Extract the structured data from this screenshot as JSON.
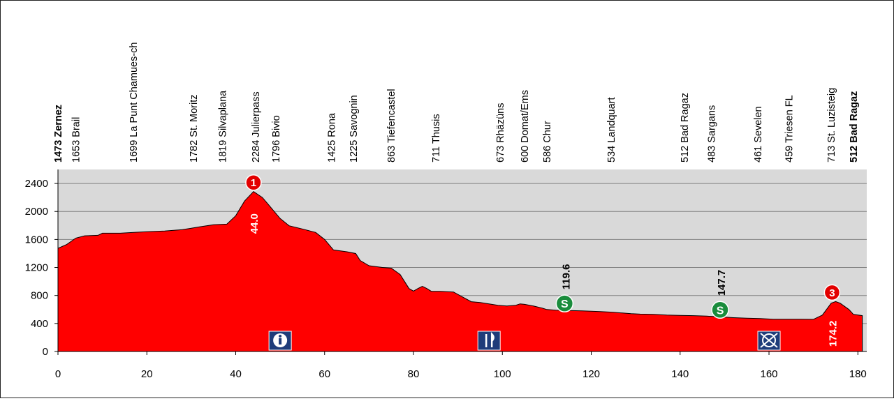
{
  "chart_data": {
    "type": "area",
    "title": "",
    "xlabel": "",
    "ylabel": "",
    "xlim": [
      0,
      182
    ],
    "ylim": [
      0,
      2600
    ],
    "x_ticks": [
      "0",
      "20",
      "40",
      "60",
      "80",
      "100",
      "120",
      "140",
      "160",
      "180"
    ],
    "y_ticks": [
      "0",
      "400",
      "800",
      "1200",
      "1600",
      "2000",
      "2400"
    ],
    "grid": true,
    "fill_color": "#ff0000",
    "background_color": "#d9d9d9",
    "profile": [
      [
        0,
        1473
      ],
      [
        2,
        1530
      ],
      [
        4,
        1620
      ],
      [
        6,
        1653
      ],
      [
        9,
        1660
      ],
      [
        10,
        1690
      ],
      [
        14,
        1690
      ],
      [
        17,
        1700
      ],
      [
        20,
        1710
      ],
      [
        24,
        1720
      ],
      [
        28,
        1740
      ],
      [
        30,
        1760
      ],
      [
        32,
        1782
      ],
      [
        35,
        1810
      ],
      [
        38,
        1819
      ],
      [
        40,
        1940
      ],
      [
        42,
        2150
      ],
      [
        44,
        2284
      ],
      [
        46,
        2200
      ],
      [
        48,
        2050
      ],
      [
        50,
        1900
      ],
      [
        52,
        1796
      ],
      [
        55,
        1750
      ],
      [
        58,
        1700
      ],
      [
        60,
        1600
      ],
      [
        62,
        1450
      ],
      [
        65,
        1425
      ],
      [
        67,
        1400
      ],
      [
        68,
        1300
      ],
      [
        70,
        1225
      ],
      [
        73,
        1200
      ],
      [
        75,
        1190
      ],
      [
        77,
        1100
      ],
      [
        79,
        900
      ],
      [
        80,
        863
      ],
      [
        81,
        900
      ],
      [
        82,
        930
      ],
      [
        83,
        900
      ],
      [
        84,
        860
      ],
      [
        86,
        860
      ],
      [
        89,
        850
      ],
      [
        91,
        780
      ],
      [
        93,
        711
      ],
      [
        95,
        700
      ],
      [
        97,
        680
      ],
      [
        99,
        660
      ],
      [
        101,
        650
      ],
      [
        103,
        660
      ],
      [
        104,
        680
      ],
      [
        105,
        673
      ],
      [
        107,
        650
      ],
      [
        109,
        620
      ],
      [
        110,
        600
      ],
      [
        112,
        590
      ],
      [
        115,
        586
      ],
      [
        118,
        580
      ],
      [
        122,
        570
      ],
      [
        125,
        560
      ],
      [
        127,
        550
      ],
      [
        129,
        540
      ],
      [
        131,
        534
      ],
      [
        134,
        530
      ],
      [
        137,
        520
      ],
      [
        140,
        515
      ],
      [
        143,
        512
      ],
      [
        146,
        505
      ],
      [
        149,
        495
      ],
      [
        152,
        483
      ],
      [
        155,
        475
      ],
      [
        158,
        470
      ],
      [
        161,
        461
      ],
      [
        164,
        460
      ],
      [
        167,
        460
      ],
      [
        170,
        459
      ],
      [
        172,
        520
      ],
      [
        174,
        690
      ],
      [
        175,
        713
      ],
      [
        176,
        690
      ],
      [
        178,
        600
      ],
      [
        179,
        530
      ],
      [
        181,
        512
      ]
    ],
    "towns": [
      {
        "x": 0,
        "label": "1473 Zernez",
        "bold": true
      },
      {
        "x": 4,
        "label": "1653 Brail",
        "bold": false
      },
      {
        "x": 17,
        "label": "1699 La Punt Chamues-ch",
        "bold": false
      },
      {
        "x": 30.5,
        "label": "1782 St. Moritz",
        "bold": false
      },
      {
        "x": 37,
        "label": "1819 Silvaplana",
        "bold": false
      },
      {
        "x": 44.5,
        "label": "2284 Julierpass",
        "bold": false
      },
      {
        "x": 49,
        "label": "1796 Bivio",
        "bold": false
      },
      {
        "x": 61.5,
        "label": "1425 Rona",
        "bold": false
      },
      {
        "x": 66.5,
        "label": "1225 Savognin",
        "bold": false
      },
      {
        "x": 75,
        "label": "863 Tiefencastel",
        "bold": false
      },
      {
        "x": 85,
        "label": "711 Thusis",
        "bold": false
      },
      {
        "x": 99.5,
        "label": "673 Rhäzüns",
        "bold": false
      },
      {
        "x": 105,
        "label": "600 Domat/Ems",
        "bold": false
      },
      {
        "x": 110,
        "label": "586 Chur",
        "bold": false
      },
      {
        "x": 124.5,
        "label": "534 Landquart",
        "bold": false
      },
      {
        "x": 141,
        "label": "512 Bad Ragaz",
        "bold": false
      },
      {
        "x": 147,
        "label": "483 Sargans",
        "bold": false
      },
      {
        "x": 157.5,
        "label": "461 Sevelen",
        "bold": false
      },
      {
        "x": 164.5,
        "label": "459 Triesen FL",
        "bold": false
      },
      {
        "x": 174,
        "label": "713 St. Luzisteig",
        "bold": false
      },
      {
        "x": 179,
        "label": "512 Bad Ragaz",
        "bold": true
      }
    ],
    "climbs": [
      {
        "x": 44,
        "category": "1",
        "km": "44.0"
      },
      {
        "x": 174.2,
        "category": "3",
        "km": "174.2"
      }
    ],
    "sprints": [
      {
        "x": 114,
        "symbol": "S",
        "km": "119.6",
        "color": "#1a8c3c"
      },
      {
        "x": 149,
        "symbol": "S",
        "km": "147.7",
        "color": "#1a8c3c"
      }
    ],
    "service_icons": [
      {
        "x": 50,
        "name": "info-icon"
      },
      {
        "x": 97,
        "name": "feed-zone-icon"
      },
      {
        "x": 160,
        "name": "no-service-icon"
      }
    ]
  }
}
